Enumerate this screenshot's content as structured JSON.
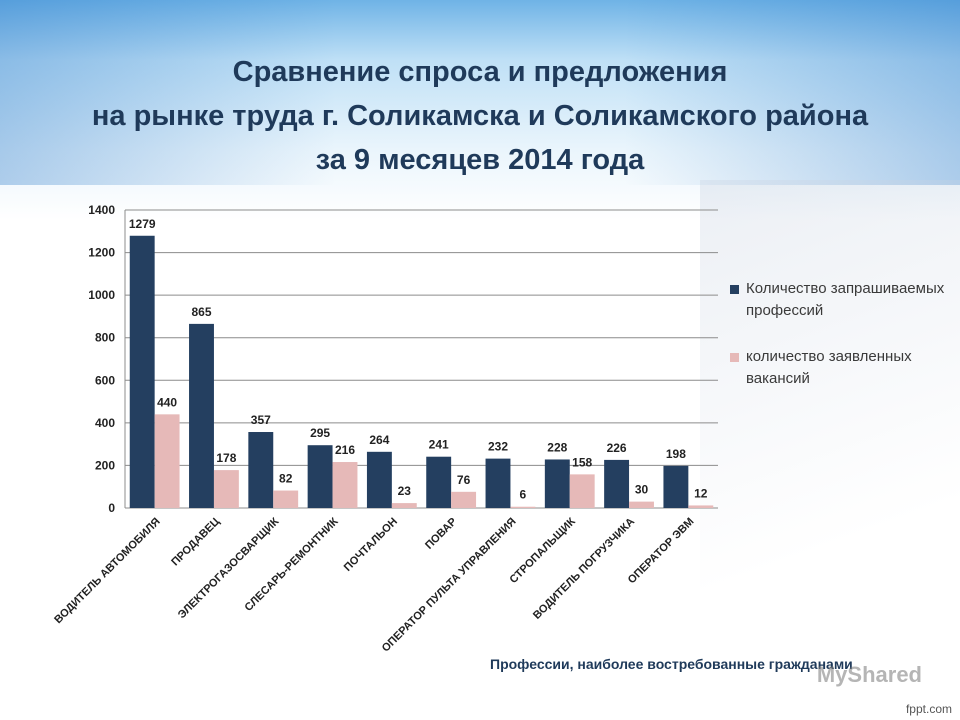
{
  "title_lines": [
    "Сравнение спроса и предложения",
    "на рынке труда г. Соликамска и Соликамского района",
    "за 9 месяцев 2014 года"
  ],
  "chart_data": {
    "type": "bar",
    "categories": [
      "ВОДИТЕЛЬ АВТОМОБИЛЯ",
      "ПРОДАВЕЦ",
      "ЭЛЕКТРОГАЗОСВАРЩИК",
      "СЛЕСАРЬ-РЕМОНТНИК",
      "ПОЧТАЛЬОН",
      "ПОВАР",
      "ОПЕРАТОР ПУЛЬТА УПРАВЛЕНИЯ",
      "СТРОПАЛЬЩИК",
      "ВОДИТЕЛЬ ПОГРУЗЧИКА",
      "ОПЕРАТОР ЭВМ"
    ],
    "series": [
      {
        "name": "Количество запрашиваемых профессий",
        "color": "#243f60",
        "values": [
          1279,
          865,
          357,
          295,
          264,
          241,
          232,
          228,
          226,
          198
        ]
      },
      {
        "name": "количество заявленных вакансий",
        "color": "#e6b9b8",
        "values": [
          440,
          178,
          82,
          216,
          23,
          76,
          6,
          158,
          30,
          12
        ]
      }
    ],
    "yticks": [
      0,
      200,
      400,
      600,
      800,
      1000,
      1200,
      1400
    ],
    "ylim": [
      0,
      1400
    ],
    "grid": true,
    "legend": "right"
  },
  "footer": "Профессии, наиболее востребованные гражданами",
  "watermark": "MyShared",
  "site": "fppt.com"
}
